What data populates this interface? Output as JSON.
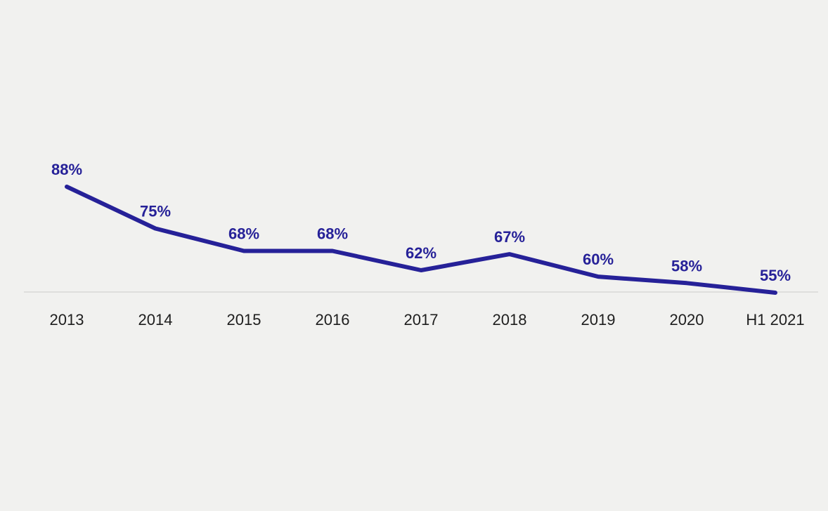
{
  "page": {
    "background_color": "#f1f1ef"
  },
  "chart_data": {
    "type": "line",
    "title": "",
    "xlabel": "",
    "ylabel": "",
    "categories": [
      "2013",
      "2014",
      "2015",
      "2016",
      "2017",
      "2018",
      "2019",
      "2020",
      "H1 2021"
    ],
    "series": [
      {
        "name": "share-percent",
        "values": [
          88,
          75,
          68,
          68,
          62,
          67,
          60,
          58,
          55
        ]
      }
    ],
    "value_labels": [
      "88%",
      "75%",
      "68%",
      "68%",
      "62%",
      "67%",
      "60%",
      "58%",
      "55%"
    ],
    "ylim": [
      55,
      90
    ],
    "baseline_value": 55,
    "grid": false,
    "legend": false,
    "line_color": "#262198",
    "value_label_color": "#262198",
    "axis_line_color": "#d8d8d6",
    "tick_label_color": "#1e1e1e"
  }
}
